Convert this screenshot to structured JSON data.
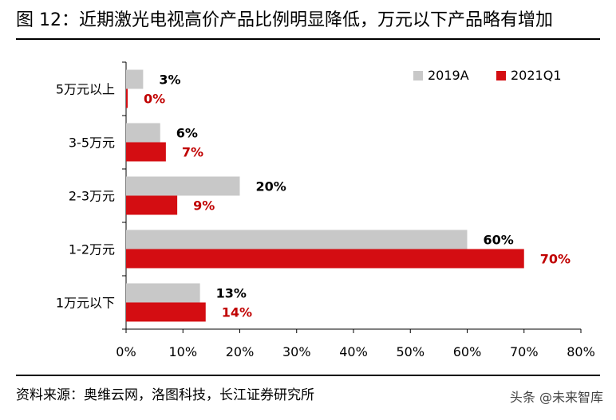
{
  "header": {
    "title": "图  12：近期激光电视高价产品比例明显降低，万元以下产品略有增加"
  },
  "footer": {
    "source": "资料来源：奥维云网，洛图科技，长江证券研究所",
    "watermark": "头条 @未来智库"
  },
  "colors": {
    "series_2019A": "#c8c8c8",
    "series_2021Q1": "#d40d12",
    "label_2019A": "#000000",
    "label_2021Q1": "#c00000",
    "axis": "#000000",
    "grid": "#cccccc"
  },
  "chart_data": {
    "type": "bar",
    "orientation": "horizontal",
    "title": "",
    "xlabel": "",
    "ylabel": "",
    "categories": [
      "5万元以上",
      "3-5万元",
      "2-3万元",
      "1-2万元",
      "1万元以下"
    ],
    "series": [
      {
        "name": "2019A",
        "values": [
          3,
          6,
          20,
          60,
          13
        ],
        "labels": [
          "3%",
          "6%",
          "20%",
          "60%",
          "13%"
        ]
      },
      {
        "name": "2021Q1",
        "values": [
          0,
          7,
          9,
          70,
          14
        ],
        "labels": [
          "0%",
          "7%",
          "9%",
          "70%",
          "14%"
        ]
      }
    ],
    "xlim": [
      0,
      80
    ],
    "xticks": [
      0,
      10,
      20,
      30,
      40,
      50,
      60,
      70,
      80
    ],
    "xtick_labels": [
      "0%",
      "10%",
      "20%",
      "30%",
      "40%",
      "50%",
      "60%",
      "70%",
      "80%"
    ],
    "grid": false,
    "legend": {
      "position": "top-right",
      "entries": [
        "2019A",
        "2021Q1"
      ]
    }
  }
}
